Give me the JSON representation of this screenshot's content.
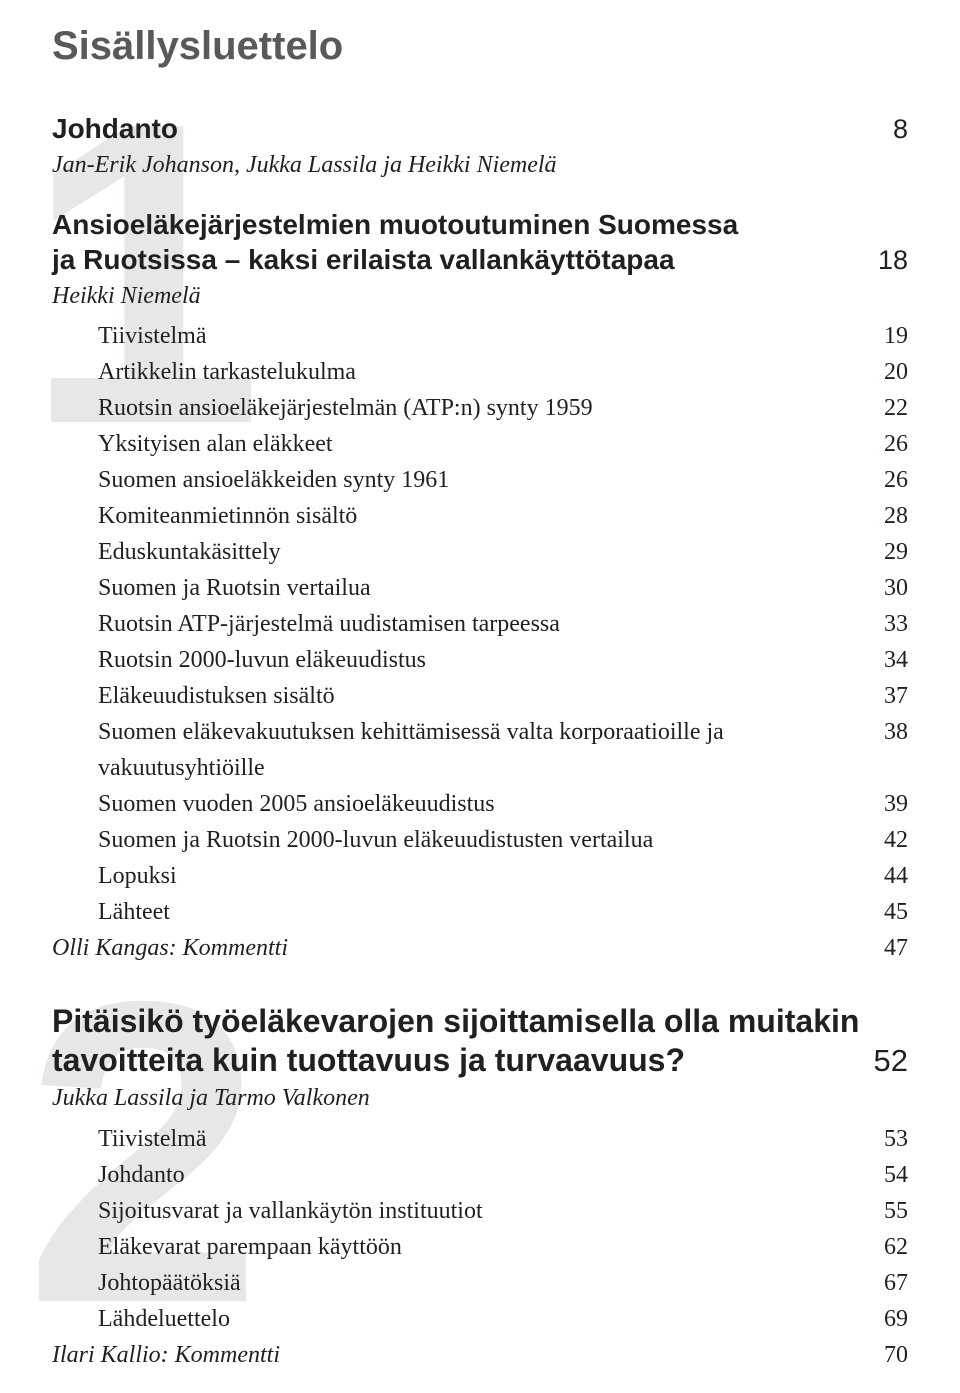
{
  "title": "Sisällysluettelo",
  "intro": {
    "heading": "Johdanto",
    "page": "8",
    "byline": "Jan-Erik Johanson, Jukka Lassila ja Heikki Niemelä"
  },
  "section1": {
    "bg_numeral": "1",
    "heading_line1": "Ansioeläkejärjestelmien muotoutuminen Suomessa",
    "heading_line2": "ja Ruotsissa – kaksi erilaista vallankäyttötapaa",
    "page": "18",
    "byline": "Heikki Niemelä",
    "entries": [
      {
        "label": "Tiivistelmä",
        "page": "19"
      },
      {
        "label": "Artikkelin tarkastelukulma",
        "page": "20"
      },
      {
        "label": "Ruotsin ansioeläkejärjestelmän (ATP:n) synty 1959",
        "page": "22"
      },
      {
        "label": "Yksityisen alan eläkkeet",
        "page": "26"
      },
      {
        "label": "Suomen ansioeläkkeiden synty 1961",
        "page": "26"
      },
      {
        "label": "Komiteanmietinnön sisältö",
        "page": "28"
      },
      {
        "label": "Eduskuntakäsittely",
        "page": "29"
      },
      {
        "label": "Suomen ja Ruotsin vertailua",
        "page": "30"
      },
      {
        "label": "Ruotsin ATP-järjestelmä uudistamisen tarpeessa",
        "page": "33"
      },
      {
        "label": "Ruotsin 2000-luvun eläkeuudistus",
        "page": "34"
      },
      {
        "label": "Eläkeuudistuksen sisältö",
        "page": "37"
      },
      {
        "label": "Suomen eläkevakuutuksen kehittämisessä valta korporaatioille ja vakuutusyhtiöille",
        "page": "38"
      },
      {
        "label": "Suomen vuoden 2005 ansioeläkeuudistus",
        "page": "39"
      },
      {
        "label": "Suomen ja Ruotsin 2000-luvun eläkeuudistusten vertailua",
        "page": "42"
      },
      {
        "label": "Lopuksi",
        "page": "44"
      },
      {
        "label": "Lähteet",
        "page": "45"
      }
    ],
    "commenter": {
      "label": "Olli Kangas: Kommentti",
      "page": "47"
    }
  },
  "section2": {
    "bg_numeral": "2",
    "heading_line1": "Pitäisikö työeläkevarojen sijoittamisella olla muitakin",
    "heading_line2": "tavoitteita kuin tuottavuus ja turvaavuus?",
    "page": "52",
    "byline": "Jukka Lassila ja Tarmo Valkonen",
    "entries": [
      {
        "label": "Tiivistelmä",
        "page": "53"
      },
      {
        "label": "Johdanto",
        "page": "54"
      },
      {
        "label": "Sijoitusvarat ja vallankäytön instituutiot",
        "page": "55"
      },
      {
        "label": "Eläkevarat parempaan käyttöön",
        "page": "62"
      },
      {
        "label": "Johtopäätöksiä",
        "page": "67"
      },
      {
        "label": "Lähdeluettelo",
        "page": "69"
      }
    ],
    "commenter": {
      "label": "Ilari Kallio: Kommentti",
      "page": "70"
    }
  }
}
